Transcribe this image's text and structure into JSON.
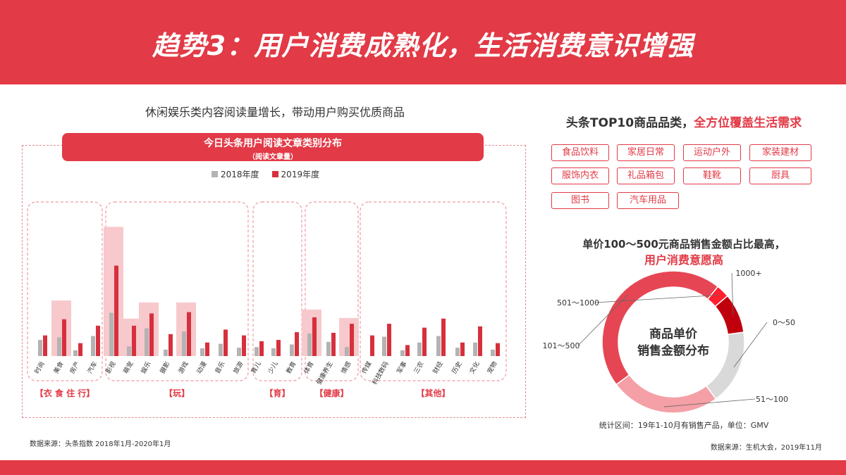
{
  "header": {
    "title": "趋势3：用户消费成熟化，生活消费意识增强"
  },
  "left": {
    "subtitle": "休闲娱乐类内容阅读量增长，带动用户购买优质商品",
    "source": "数据来源：头条指数  2018年1月-2020年1月"
  },
  "colors": {
    "accent": "#e23a46",
    "series2018": "#b3b3b3",
    "series2019": "#d7303d",
    "highlight": "#f7c9cc"
  },
  "chart_data": [
    {
      "type": "bar",
      "title": "今日头条用户阅读文章类别分布",
      "unit": "（阅读文章量）",
      "categories": [
        "时尚",
        "美食",
        "房产",
        "汽车",
        "影视",
        "萌宠",
        "娱乐",
        "摄影",
        "游戏",
        "动漫",
        "音乐",
        "旅游",
        "育儿",
        "少儿",
        "教育",
        "体育",
        "健康养生",
        "情感",
        "传媒",
        "科技数码",
        "军事",
        "三农",
        "财经",
        "历史",
        "文化",
        "宠物"
      ],
      "series": [
        {
          "name": "2018年度",
          "values": [
            25,
            29,
            9,
            31,
            67,
            15,
            43,
            10,
            38,
            12,
            19,
            13,
            14,
            12,
            18,
            35,
            22,
            14,
            0,
            30,
            9,
            21,
            31,
            13,
            21,
            10
          ]
        },
        {
          "name": "2019年度",
          "values": [
            32,
            57,
            20,
            47,
            140,
            47,
            66,
            34,
            68,
            21,
            41,
            32,
            23,
            25,
            37,
            60,
            36,
            50,
            32,
            50,
            17,
            44,
            58,
            21,
            46,
            20
          ]
        }
      ],
      "highlighted": [
        {
          "category": "美食",
          "value": 86
        },
        {
          "category": "影视",
          "value": 200
        },
        {
          "category": "萌宠",
          "value": 58
        },
        {
          "category": "娱乐",
          "value": 83
        },
        {
          "category": "游戏",
          "value": 83
        },
        {
          "category": "体育",
          "value": 72
        },
        {
          "category": "情感",
          "value": 59
        }
      ],
      "groups": [
        {
          "label": "【衣 食 住 行】",
          "categories": [
            "时尚",
            "美食",
            "房产",
            "汽车"
          ]
        },
        {
          "label": "【玩】",
          "categories": [
            "影视",
            "萌宠",
            "娱乐",
            "摄影",
            "游戏",
            "动漫",
            "音乐",
            "旅游"
          ]
        },
        {
          "label": "【育】",
          "categories": [
            "育儿",
            "少儿",
            "教育"
          ]
        },
        {
          "label": "【健康】",
          "categories": [
            "体育",
            "健康养生",
            "情感"
          ]
        },
        {
          "label": "【其他】",
          "categories": [
            "传媒",
            "科技数码",
            "军事",
            "三农",
            "财经",
            "历史",
            "文化",
            "宠物"
          ]
        }
      ],
      "ylim": [
        0,
        220
      ],
      "legend": "top"
    },
    {
      "type": "pie",
      "title": "商品单价销售金额分布",
      "center_label_line1": "商品单价",
      "center_label_line2": "销售金额分布",
      "slices": [
        {
          "label": "0～50",
          "value": 17,
          "color": "#d9d9d9"
        },
        {
          "label": "51～100",
          "value": 25,
          "color": "#f4a0a6"
        },
        {
          "label": "101～500",
          "value": 46,
          "color": "#e64654"
        },
        {
          "label": "501～1000",
          "value": 3,
          "color": "#ff1f2e"
        },
        {
          "label": "1000+",
          "value": 9,
          "color": "#c0000d"
        }
      ]
    }
  ],
  "right": {
    "title_plain": "头条TOP10商品品类，",
    "title_red": "全方位覆盖生活需求",
    "tags": [
      "食品饮料",
      "家居日常",
      "运动户外",
      "家装建材",
      "服饰内衣",
      "礼品箱包",
      "鞋靴",
      "厨具",
      "图书",
      "汽车用品"
    ],
    "donut_note_line1": "单价100～500元商品销售金额占比最高，",
    "donut_note_line2": "用户消费意愿高",
    "stat_note": "统计区间：19年1-10月有销售产品，单位：GMV",
    "source": "数据来源：生机大会，2019年11月"
  }
}
